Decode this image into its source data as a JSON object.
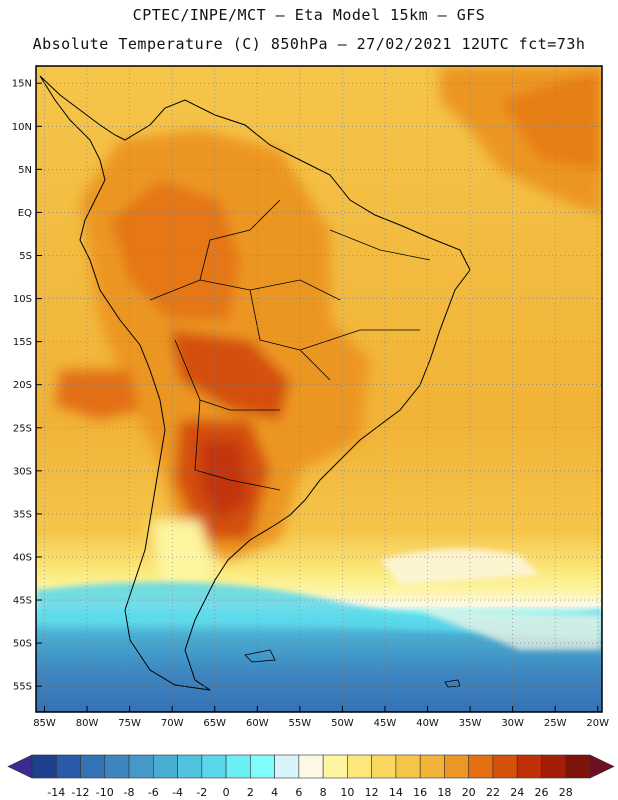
{
  "header": {
    "line1": "CPTEC/INPE/MCT —  Eta Model 15km — GFS",
    "line2": "Absolute Temperature (C) 850hPa — 27/02/2021 12UTC fct=73h"
  },
  "map": {
    "lat_labels": [
      "15N",
      "10N",
      "5N",
      "EQ",
      "5S",
      "10S",
      "15S",
      "20S",
      "25S",
      "30S",
      "35S",
      "40S",
      "45S",
      "50S",
      "55S"
    ],
    "lon_labels": [
      "85W",
      "80W",
      "75W",
      "70W",
      "65W",
      "60W",
      "55W",
      "50W",
      "45W",
      "40W",
      "35W",
      "30W",
      "25W",
      "20W"
    ],
    "lat_range": [
      -58,
      17
    ],
    "lon_range": [
      -86,
      -19.5
    ],
    "frame_color": "#000000",
    "grid_style": "dotted"
  },
  "colorbar": {
    "labels": [
      "-14",
      "-12",
      "-10",
      "-8",
      "-6",
      "-4",
      "-2",
      "0",
      "2",
      "4",
      "6",
      "8",
      "10",
      "12",
      "14",
      "16",
      "18",
      "20",
      "22",
      "24",
      "26",
      "28"
    ],
    "colors": [
      "#1f3f8f",
      "#2a5aa8",
      "#3572b6",
      "#3e86c0",
      "#4599c8",
      "#4aaed3",
      "#50c3df",
      "#5ad7ea",
      "#6beef4",
      "#7ffcfb",
      "#d8f4fb",
      "#fdf8e6",
      "#fdf5a0",
      "#fbe77a",
      "#f8d85f",
      "#f5c54a",
      "#f1b337",
      "#ec9623",
      "#e36f12",
      "#d4500b",
      "#bf3009",
      "#a41d08",
      "#7d1309"
    ],
    "under_color": "#3b2a8f",
    "over_color": "#6f1020"
  }
}
